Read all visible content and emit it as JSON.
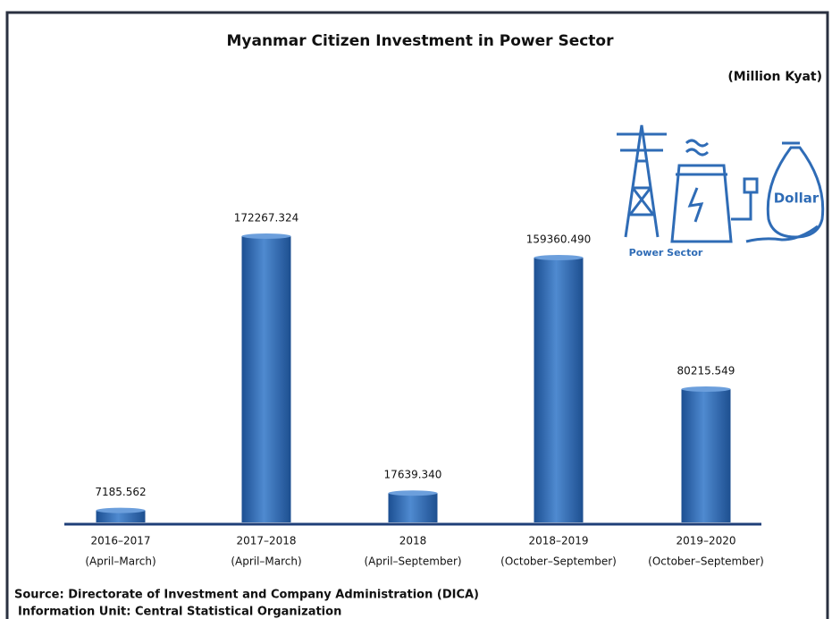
{
  "chart_data": {
    "type": "bar",
    "title": "Myanmar Citizen Investment in Power Sector",
    "subtitle": "(Million Kyat)",
    "categories": [
      [
        "2016–2017",
        "(April–March)"
      ],
      [
        "2017–2018",
        "(April–March)"
      ],
      [
        "2018",
        "(April–September)"
      ],
      [
        "2018–2019",
        "(October–September)"
      ],
      [
        "2019–2020",
        "(October–September)"
      ]
    ],
    "values": [
      7185.562,
      172267.324,
      17639.34,
      159360.49,
      80215.549
    ],
    "value_labels": [
      "7185.562",
      "172267.324",
      "17639.340",
      "159360.490",
      "80215.549"
    ],
    "color": "#2f6cb6",
    "annotations": [
      "Power Sector",
      "Dollar"
    ],
    "source": "Source:  Directorate of Investment and Company Administration (DICA)",
    "information_unit": "Information Unit:  Central Statistical Organization"
  }
}
